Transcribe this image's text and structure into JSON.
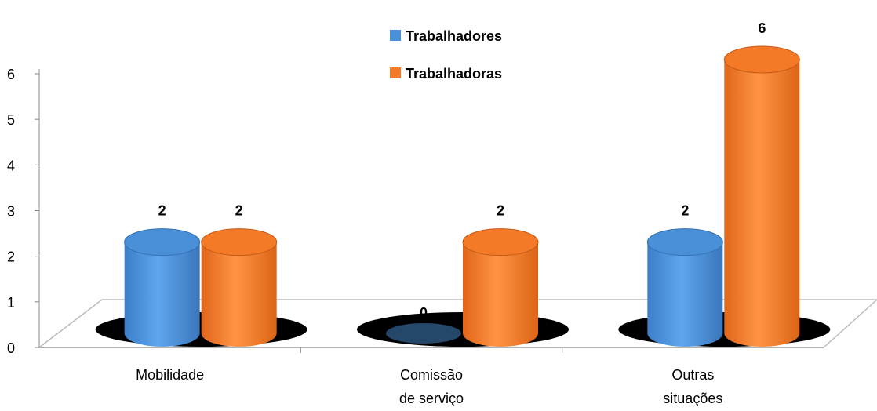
{
  "chart_data": {
    "type": "bar3d",
    "categories": [
      "Mobilidade",
      "Comissão de serviço",
      "Outras situações"
    ],
    "series": [
      {
        "name": "Trabalhadores",
        "color": "#4a90d9",
        "values": [
          2,
          0,
          2
        ]
      },
      {
        "name": "Trabalhadoras",
        "color": "#f47a28",
        "values": [
          2,
          2,
          6
        ]
      }
    ],
    "ylim": [
      0,
      6
    ],
    "yticks": [
      0,
      1,
      2,
      3,
      4,
      5,
      6
    ],
    "legend": "top"
  }
}
